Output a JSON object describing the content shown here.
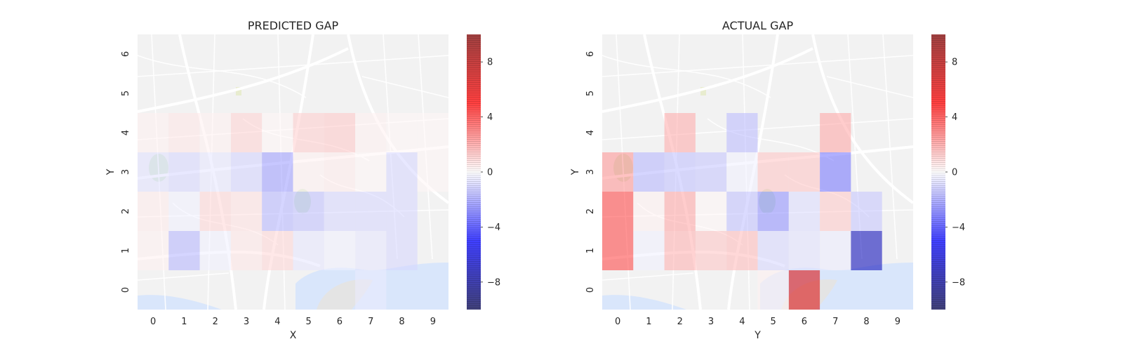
{
  "chart_data": [
    {
      "type": "heatmap",
      "title": "PREDICTED GAP",
      "xlabel": "X",
      "ylabel": "Y",
      "x_ticks": [
        "0",
        "1",
        "2",
        "3",
        "4",
        "5",
        "6",
        "7",
        "8",
        "9"
      ],
      "y_ticks": [
        "0",
        "1",
        "2",
        "3",
        "4",
        "5",
        "6"
      ],
      "cmap": "seismic",
      "vmin": -10,
      "vmax": 10,
      "colorbar_ticks": [
        "8",
        "4",
        "0",
        "−4",
        "−8"
      ],
      "colorbar_values": [
        8,
        4,
        0,
        -4,
        -8
      ],
      "background": "map",
      "cells": [
        {
          "x": 0,
          "y": 1,
          "v": 0.3
        },
        {
          "x": 1,
          "y": 1,
          "v": -1.5
        },
        {
          "x": 2,
          "y": 1,
          "v": -0.3
        },
        {
          "x": 3,
          "y": 1,
          "v": 0.5
        },
        {
          "x": 4,
          "y": 1,
          "v": 0.8
        },
        {
          "x": 5,
          "y": 1,
          "v": -0.5
        },
        {
          "x": 6,
          "y": 1,
          "v": -0.3
        },
        {
          "x": 7,
          "y": 1,
          "v": -0.5
        },
        {
          "x": 8,
          "y": 1,
          "v": -0.8
        },
        {
          "x": 0,
          "y": 2,
          "v": 0.4
        },
        {
          "x": 1,
          "y": 2,
          "v": -0.3
        },
        {
          "x": 2,
          "y": 2,
          "v": 0.8
        },
        {
          "x": 3,
          "y": 2,
          "v": 0.6
        },
        {
          "x": 4,
          "y": 2,
          "v": -1.5
        },
        {
          "x": 5,
          "y": 2,
          "v": -1.3
        },
        {
          "x": 6,
          "y": 2,
          "v": -0.8
        },
        {
          "x": 7,
          "y": 2,
          "v": -0.8
        },
        {
          "x": 8,
          "y": 2,
          "v": -0.8
        },
        {
          "x": 0,
          "y": 3,
          "v": -0.6
        },
        {
          "x": 1,
          "y": 3,
          "v": -0.8
        },
        {
          "x": 2,
          "y": 3,
          "v": -0.5
        },
        {
          "x": 3,
          "y": 3,
          "v": -0.9
        },
        {
          "x": 4,
          "y": 3,
          "v": -2.0
        },
        {
          "x": 5,
          "y": 3,
          "v": 0.3
        },
        {
          "x": 6,
          "y": 3,
          "v": 0.4
        },
        {
          "x": 7,
          "y": 3,
          "v": 0.2
        },
        {
          "x": 8,
          "y": 3,
          "v": -0.8
        },
        {
          "x": 9,
          "y": 3,
          "v": 0.2
        },
        {
          "x": 0,
          "y": 4,
          "v": 0.3
        },
        {
          "x": 1,
          "y": 4,
          "v": 0.5
        },
        {
          "x": 2,
          "y": 4,
          "v": 0.3
        },
        {
          "x": 3,
          "y": 4,
          "v": 0.9
        },
        {
          "x": 4,
          "y": 4,
          "v": 0.2
        },
        {
          "x": 5,
          "y": 4,
          "v": 1.0
        },
        {
          "x": 6,
          "y": 4,
          "v": 1.1
        },
        {
          "x": 7,
          "y": 4,
          "v": 0.3
        },
        {
          "x": 8,
          "y": 4,
          "v": 0.2
        },
        {
          "x": 9,
          "y": 4,
          "v": 0.2
        },
        {
          "x": 7,
          "y": 0,
          "v": -0.4
        }
      ]
    },
    {
      "type": "heatmap",
      "title": "ACTUAL GAP",
      "xlabel": "Y",
      "ylabel": "Y",
      "x_ticks": [
        "0",
        "1",
        "2",
        "3",
        "4",
        "5",
        "6",
        "7",
        "8",
        "9"
      ],
      "y_ticks": [
        "0",
        "1",
        "2",
        "3",
        "4",
        "5",
        "6"
      ],
      "cmap": "seismic",
      "vmin": -10,
      "vmax": 10,
      "colorbar_ticks": [
        "8",
        "4",
        "0",
        "−4",
        "−8"
      ],
      "colorbar_values": [
        8,
        4,
        0,
        -4,
        -8
      ],
      "background": "map",
      "cells": [
        {
          "x": 0,
          "y": 1,
          "v": 3.8
        },
        {
          "x": 1,
          "y": 1,
          "v": -0.3
        },
        {
          "x": 2,
          "y": 1,
          "v": 1.6
        },
        {
          "x": 3,
          "y": 1,
          "v": 1.2
        },
        {
          "x": 4,
          "y": 1,
          "v": 1.4
        },
        {
          "x": 5,
          "y": 1,
          "v": -0.8
        },
        {
          "x": 6,
          "y": 1,
          "v": -0.6
        },
        {
          "x": 7,
          "y": 1,
          "v": -0.4
        },
        {
          "x": 8,
          "y": 1,
          "v": -7.0
        },
        {
          "x": 0,
          "y": 2,
          "v": 3.8
        },
        {
          "x": 1,
          "y": 2,
          "v": 0.3
        },
        {
          "x": 2,
          "y": 2,
          "v": 1.8
        },
        {
          "x": 3,
          "y": 2,
          "v": 0.2
        },
        {
          "x": 4,
          "y": 2,
          "v": -1.3
        },
        {
          "x": 5,
          "y": 2,
          "v": -2.3
        },
        {
          "x": 6,
          "y": 2,
          "v": -0.7
        },
        {
          "x": 7,
          "y": 2,
          "v": 1.1
        },
        {
          "x": 8,
          "y": 2,
          "v": -1.2
        },
        {
          "x": 0,
          "y": 3,
          "v": 2.2
        },
        {
          "x": 1,
          "y": 3,
          "v": -1.5
        },
        {
          "x": 2,
          "y": 3,
          "v": -1.3
        },
        {
          "x": 3,
          "y": 3,
          "v": -1.2
        },
        {
          "x": 4,
          "y": 3,
          "v": -0.3
        },
        {
          "x": 5,
          "y": 3,
          "v": 1.2
        },
        {
          "x": 6,
          "y": 3,
          "v": 1.2
        },
        {
          "x": 7,
          "y": 3,
          "v": -2.8
        },
        {
          "x": 2,
          "y": 4,
          "v": 1.7
        },
        {
          "x": 4,
          "y": 4,
          "v": -1.4
        },
        {
          "x": 7,
          "y": 4,
          "v": 1.8
        },
        {
          "x": 6,
          "y": 0,
          "v": 6.5
        },
        {
          "x": 5,
          "y": 0,
          "v": 0.3
        }
      ]
    }
  ]
}
